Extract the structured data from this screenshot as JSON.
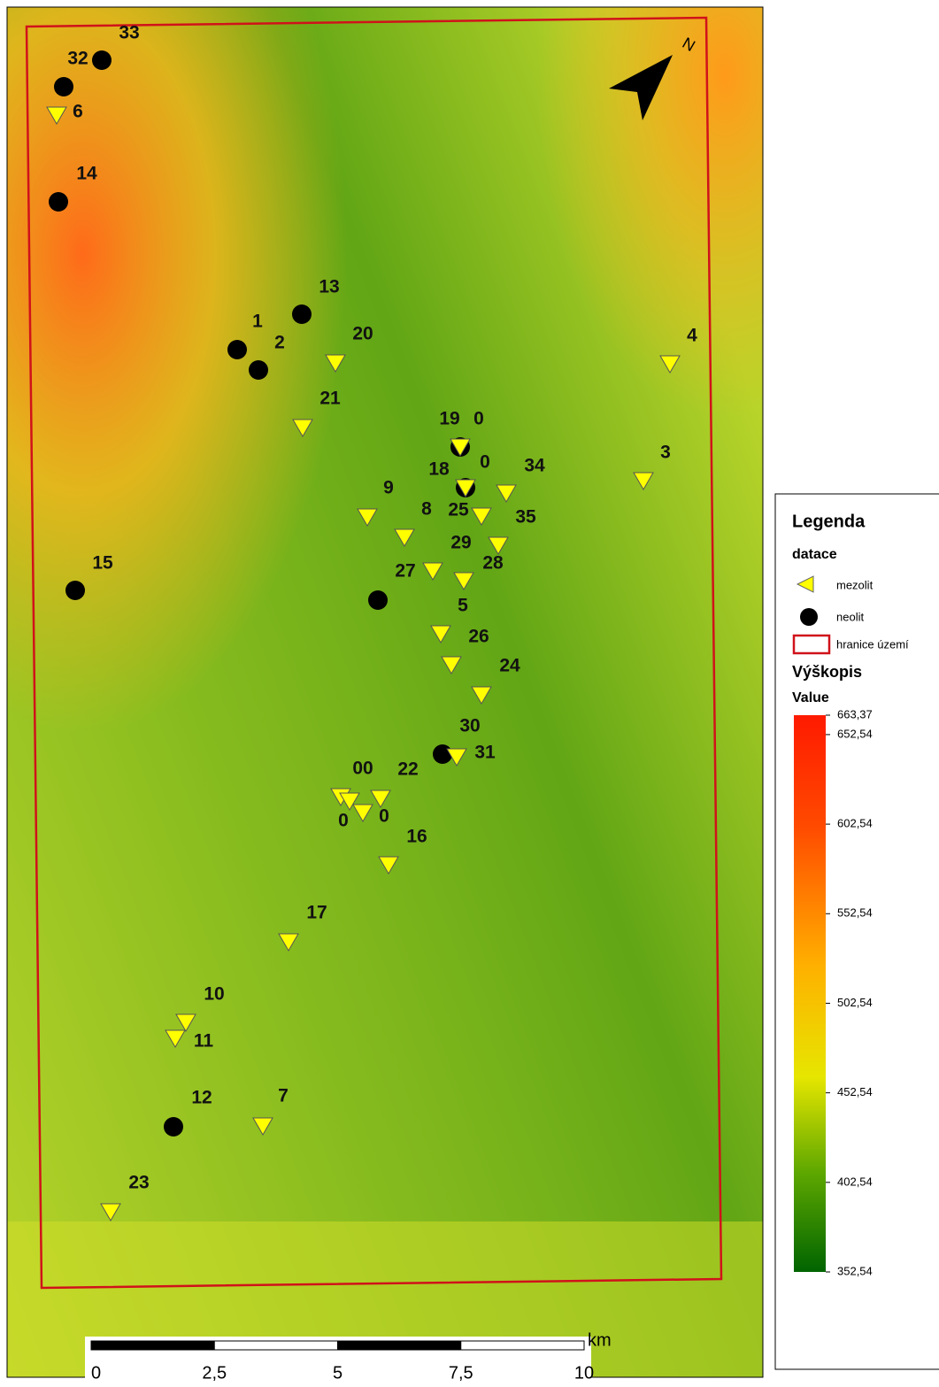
{
  "map": {
    "north": "N",
    "site_labels": [
      "33",
      "32",
      "6",
      "14",
      "13",
      "1",
      "2",
      "20",
      "4",
      "21",
      "19",
      "0",
      "18",
      "0",
      "34",
      "3",
      "9",
      "8",
      "25",
      "35",
      "29",
      "27",
      "28",
      "15",
      "5",
      "26",
      "24",
      "30",
      "31",
      "00",
      "22",
      "0",
      "0",
      "16",
      "17",
      "10",
      "11",
      "12",
      "7",
      "23"
    ],
    "legend": {
      "title": "Legenda",
      "group": "datace",
      "items": [
        "mezolit",
        "neolit",
        "hranice území"
      ],
      "raster_title": "Výškopis",
      "raster_sub": "Value",
      "range": [
        352.54,
        663.37
      ],
      "ticks": [
        {
          "value": 663.37,
          "label": "663,37"
        },
        {
          "value": 652.54,
          "label": "652,54"
        },
        {
          "value": 602.54,
          "label": "602,54"
        },
        {
          "value": 552.54,
          "label": "552,54"
        },
        {
          "value": 502.54,
          "label": "502,54"
        },
        {
          "value": 452.54,
          "label": "452,54"
        },
        {
          "value": 402.54,
          "label": "402,54"
        },
        {
          "value": 352.54,
          "label": "352,54"
        }
      ]
    },
    "scale": {
      "unit": "km",
      "range": [
        0,
        10
      ],
      "ticks": [
        0,
        {
          "value": 2.5,
          "label": "2,5"
        },
        5,
        {
          "value": 7.5,
          "label": "7,5"
        },
        10
      ]
    }
  }
}
